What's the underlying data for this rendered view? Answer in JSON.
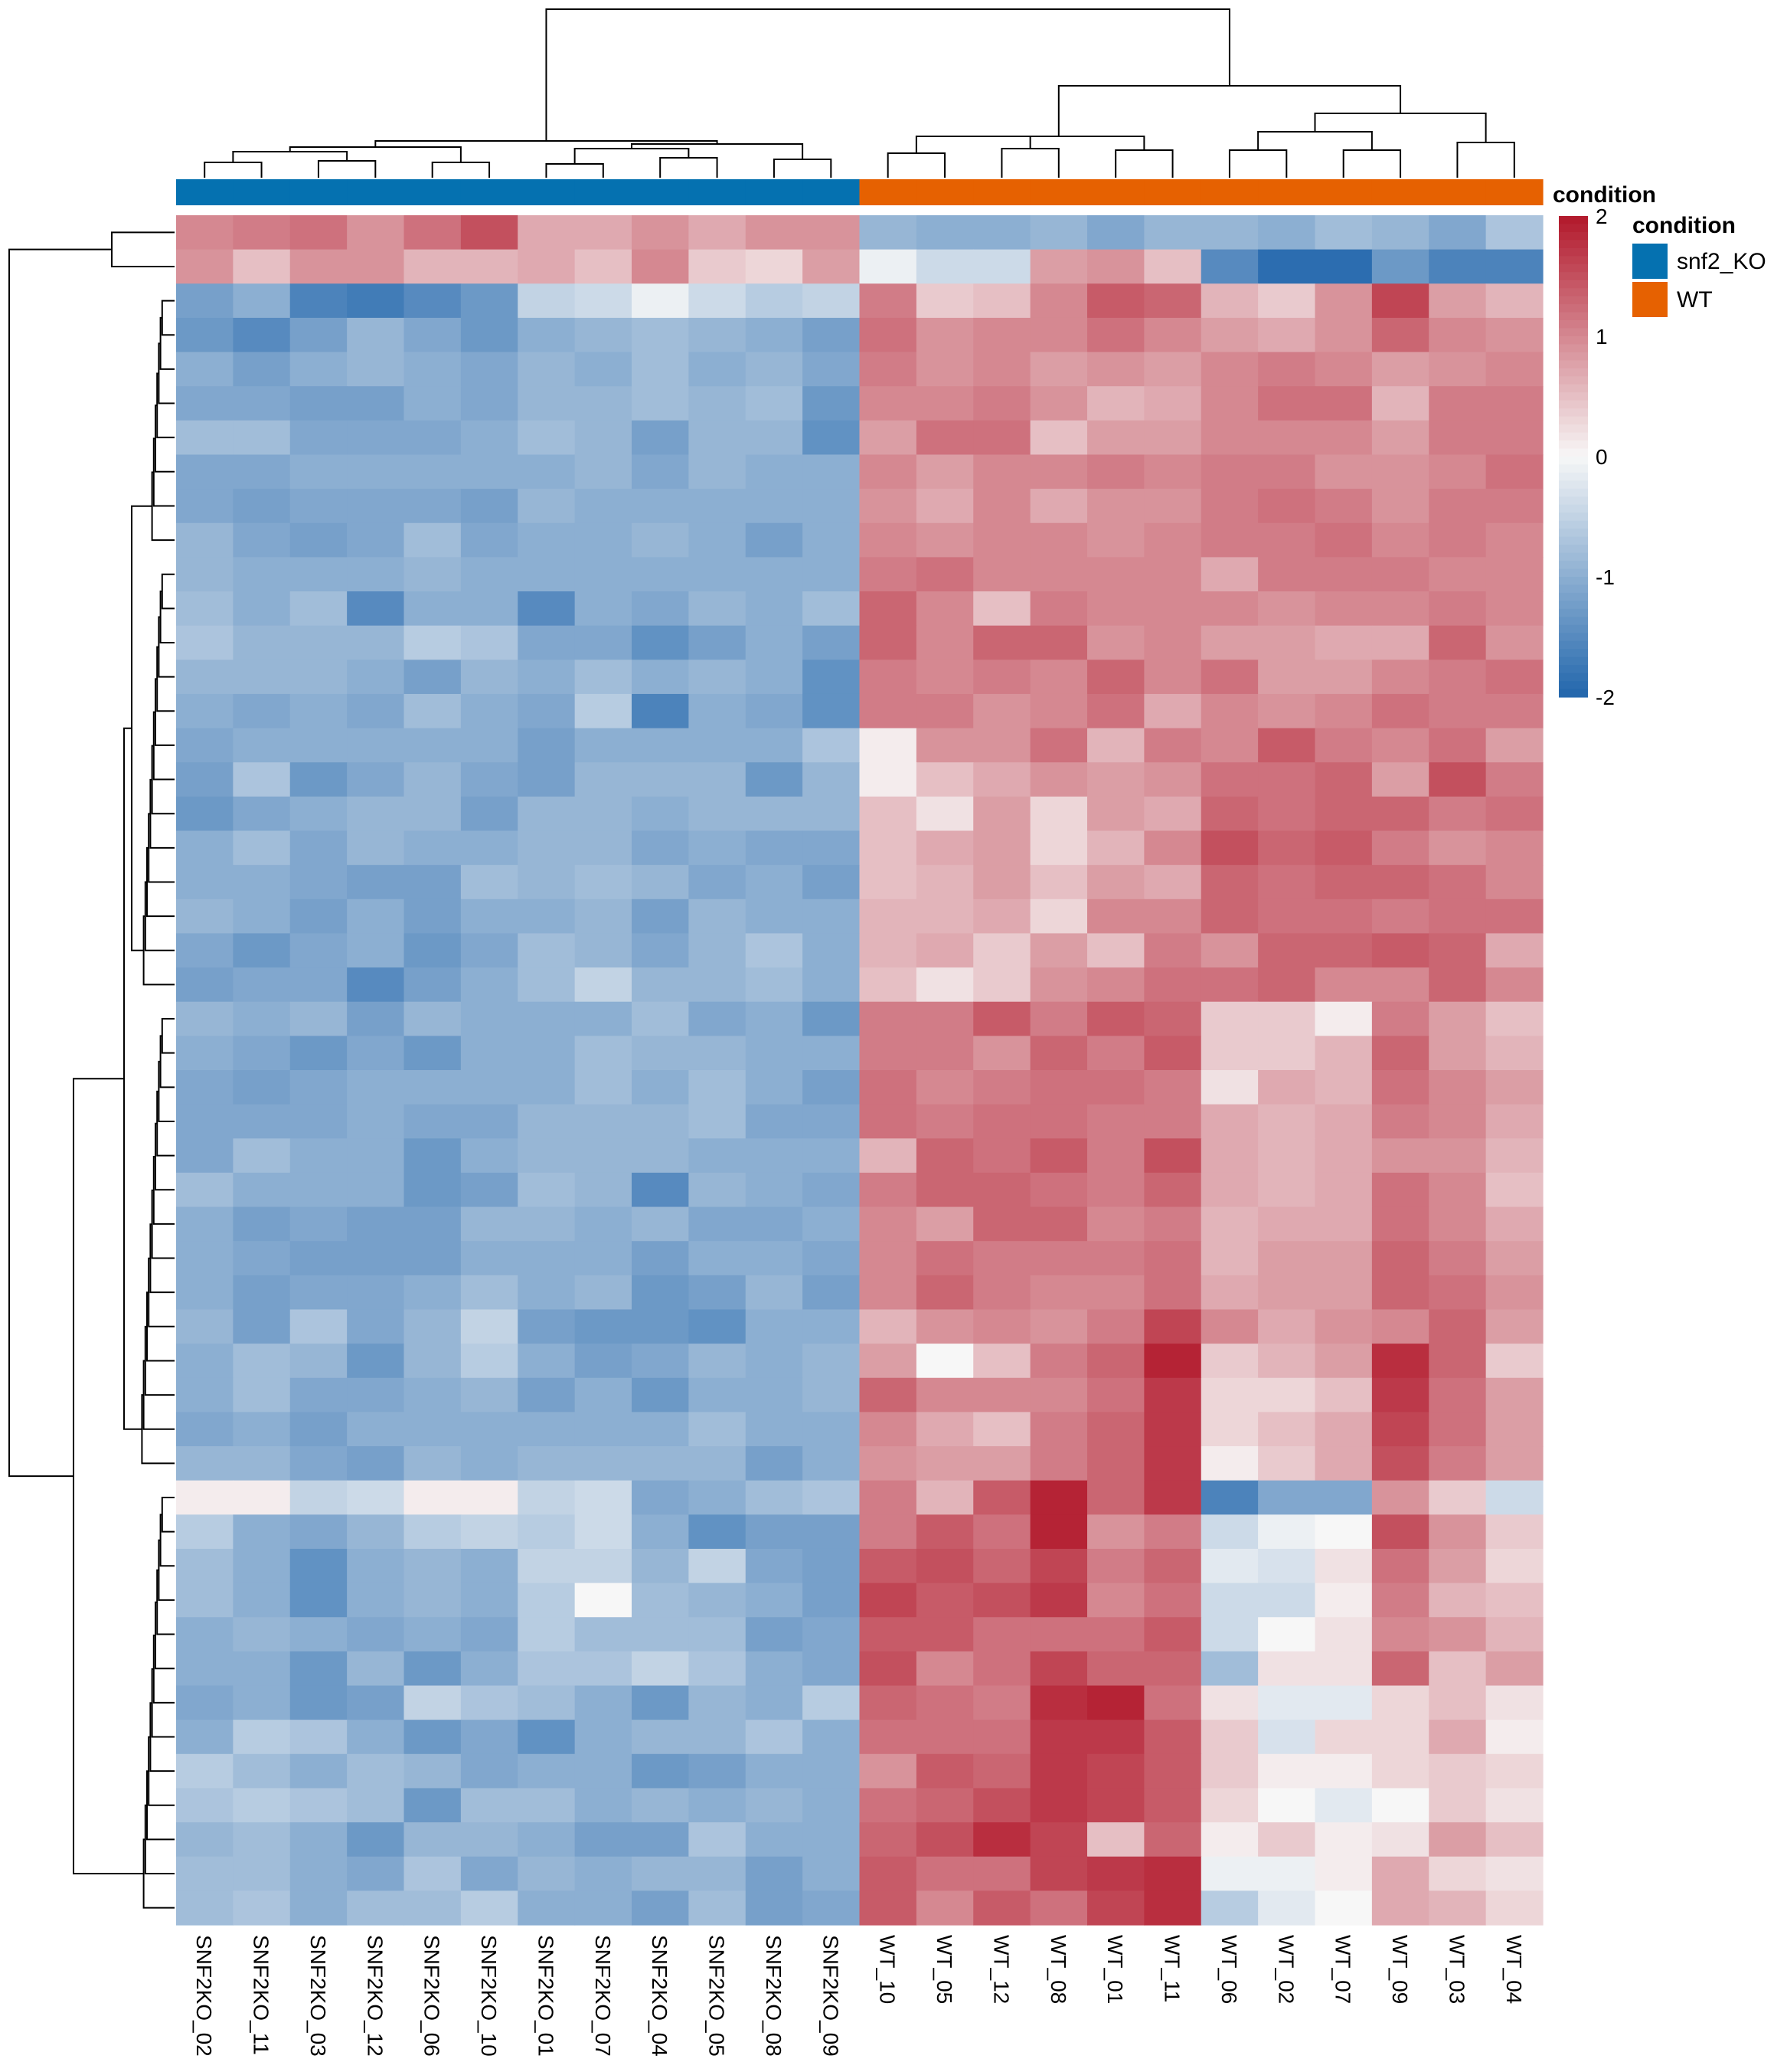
{
  "chart_data": {
    "type": "heatmap",
    "title": "",
    "columns": [
      "SNF2KO_02",
      "SNF2KO_11",
      "SNF2KO_03",
      "SNF2KO_12",
      "SNF2KO_06",
      "SNF2KO_10",
      "SNF2KO_01",
      "SNF2KO_07",
      "SNF2KO_04",
      "SNF2KO_05",
      "SNF2KO_08",
      "SNF2KO_09",
      "WT_10",
      "WT_05",
      "WT_12",
      "WT_08",
      "WT_01",
      "WT_11",
      "WT_06",
      "WT_02",
      "WT_07",
      "WT_09",
      "WT_03",
      "WT_04"
    ],
    "column_annotation": {
      "name": "condition",
      "values": [
        "snf2_KO",
        "snf2_KO",
        "snf2_KO",
        "snf2_KO",
        "snf2_KO",
        "snf2_KO",
        "snf2_KO",
        "snf2_KO",
        "snf2_KO",
        "snf2_KO",
        "snf2_KO",
        "snf2_KO",
        "WT",
        "WT",
        "WT",
        "WT",
        "WT",
        "WT",
        "WT",
        "WT",
        "WT",
        "WT",
        "WT",
        "WT"
      ]
    },
    "annotation_legend": {
      "title": "condition",
      "entries": [
        {
          "label": "snf2_KO",
          "color": "#0571b0"
        },
        {
          "label": "WT",
          "color": "#e66101"
        }
      ]
    },
    "color_scale": {
      "ticks": [
        "2",
        "1",
        "0",
        "-1",
        "-2"
      ],
      "min": -2,
      "max": 2,
      "low_color": "#2166ac",
      "mid_color": "#f7f7f7",
      "high_color": "#b2182b"
    },
    "row_dendrogram": true,
    "column_dendrogram": true,
    "values": [
      [
        1.0,
        1.1,
        1.2,
        0.9,
        1.2,
        1.5,
        0.7,
        0.7,
        0.9,
        0.7,
        0.9,
        0.9,
        -0.9,
        -1.0,
        -1.0,
        -0.9,
        -1.1,
        -0.9,
        -0.9,
        -1.0,
        -0.8,
        -0.9,
        -1.1,
        -0.7
      ],
      [
        0.9,
        0.5,
        0.9,
        0.9,
        0.6,
        0.6,
        0.7,
        0.5,
        1.0,
        0.4,
        0.3,
        0.8,
        -0.1,
        -0.4,
        -0.4,
        0.8,
        0.9,
        0.5,
        -1.5,
        -1.9,
        -1.9,
        -1.3,
        -1.6,
        -1.6
      ],
      [
        -1.2,
        -1.0,
        -1.6,
        -1.7,
        -1.5,
        -1.3,
        -0.5,
        -0.4,
        -0.1,
        -0.4,
        -0.6,
        -0.5,
        1.1,
        0.4,
        0.5,
        1.0,
        1.4,
        1.3,
        0.6,
        0.4,
        0.9,
        1.6,
        0.8,
        0.6
      ],
      [
        -1.3,
        -1.5,
        -1.2,
        -0.9,
        -1.1,
        -1.3,
        -1.0,
        -0.9,
        -0.8,
        -0.9,
        -1.0,
        -1.2,
        1.2,
        0.9,
        1.0,
        1.0,
        1.2,
        1.0,
        0.8,
        0.7,
        0.9,
        1.3,
        1.0,
        0.9
      ],
      [
        -1.0,
        -1.2,
        -1.0,
        -0.9,
        -1.0,
        -1.1,
        -0.9,
        -1.0,
        -0.8,
        -1.0,
        -0.9,
        -1.1,
        1.1,
        0.9,
        1.0,
        0.8,
        0.9,
        0.8,
        1.0,
        1.1,
        1.0,
        0.8,
        0.9,
        1.0
      ],
      [
        -1.1,
        -1.1,
        -1.2,
        -1.2,
        -1.0,
        -1.1,
        -0.9,
        -0.9,
        -0.8,
        -0.9,
        -0.8,
        -1.3,
        1.0,
        1.0,
        1.1,
        0.9,
        0.6,
        0.7,
        1.0,
        1.2,
        1.2,
        0.6,
        1.1,
        1.1
      ],
      [
        -0.8,
        -0.8,
        -1.1,
        -1.1,
        -1.1,
        -1.0,
        -0.8,
        -0.9,
        -1.2,
        -0.9,
        -0.9,
        -1.4,
        0.8,
        1.2,
        1.2,
        0.5,
        0.8,
        0.8,
        1.0,
        1.0,
        1.0,
        0.8,
        1.1,
        1.1
      ],
      [
        -1.1,
        -1.1,
        -1.0,
        -1.0,
        -1.0,
        -1.0,
        -1.0,
        -0.9,
        -1.1,
        -0.9,
        -1.0,
        -1.0,
        1.0,
        0.8,
        1.0,
        1.0,
        1.1,
        1.0,
        1.1,
        1.1,
        0.9,
        0.9,
        1.0,
        1.2
      ],
      [
        -1.1,
        -1.2,
        -1.1,
        -1.1,
        -1.1,
        -1.2,
        -0.9,
        -1.0,
        -1.0,
        -1.0,
        -1.0,
        -1.0,
        0.9,
        0.7,
        1.0,
        0.7,
        0.9,
        0.9,
        1.1,
        1.2,
        1.1,
        0.9,
        1.1,
        1.1
      ],
      [
        -0.9,
        -1.1,
        -1.2,
        -1.1,
        -0.8,
        -1.1,
        -1.0,
        -1.0,
        -0.9,
        -1.0,
        -1.2,
        -1.0,
        1.0,
        0.9,
        1.0,
        1.0,
        0.9,
        1.0,
        1.1,
        1.1,
        1.2,
        1.0,
        1.1,
        1.0
      ],
      [
        -0.9,
        -1.0,
        -1.0,
        -1.0,
        -0.9,
        -1.0,
        -1.0,
        -1.0,
        -1.0,
        -1.0,
        -1.0,
        -1.0,
        1.1,
        1.2,
        1.0,
        1.0,
        1.0,
        1.0,
        0.7,
        1.1,
        1.1,
        1.1,
        1.0,
        1.0
      ],
      [
        -0.8,
        -1.0,
        -0.8,
        -1.5,
        -1.0,
        -1.0,
        -1.5,
        -1.0,
        -1.1,
        -0.9,
        -1.0,
        -0.8,
        1.3,
        1.0,
        0.5,
        1.1,
        1.0,
        1.0,
        1.0,
        0.9,
        1.0,
        1.0,
        1.1,
        1.0
      ],
      [
        -0.7,
        -0.9,
        -0.9,
        -0.9,
        -0.6,
        -0.7,
        -1.1,
        -1.1,
        -1.4,
        -1.2,
        -1.0,
        -1.2,
        1.3,
        1.0,
        1.3,
        1.3,
        0.9,
        1.0,
        0.8,
        0.8,
        0.7,
        0.7,
        1.3,
        0.9
      ],
      [
        -0.9,
        -0.9,
        -0.9,
        -1.0,
        -1.2,
        -0.9,
        -1.0,
        -0.8,
        -1.0,
        -0.9,
        -1.0,
        -1.4,
        1.1,
        1.0,
        1.1,
        1.0,
        1.3,
        1.0,
        1.2,
        0.8,
        0.8,
        1.0,
        1.1,
        1.2
      ],
      [
        -1.0,
        -1.1,
        -1.0,
        -1.1,
        -0.8,
        -1.0,
        -1.1,
        -0.6,
        -1.6,
        -1.0,
        -1.1,
        -1.4,
        1.1,
        1.1,
        0.9,
        1.0,
        1.2,
        0.7,
        1.0,
        0.9,
        1.0,
        1.2,
        1.1,
        1.1
      ],
      [
        -1.1,
        -1.0,
        -1.0,
        -1.0,
        -1.0,
        -1.0,
        -1.2,
        -1.0,
        -1.0,
        -1.0,
        -1.0,
        -0.7,
        0.1,
        0.9,
        0.9,
        1.2,
        0.6,
        1.1,
        1.0,
        1.4,
        1.1,
        1.0,
        1.2,
        0.8
      ],
      [
        -1.2,
        -0.7,
        -1.3,
        -1.1,
        -0.9,
        -1.1,
        -1.2,
        -0.9,
        -0.9,
        -0.9,
        -1.3,
        -0.9,
        0.1,
        0.5,
        0.7,
        0.9,
        0.8,
        0.9,
        1.2,
        1.2,
        1.3,
        0.8,
        1.5,
        1.1
      ],
      [
        -1.3,
        -1.1,
        -1.0,
        -0.9,
        -0.9,
        -1.2,
        -0.9,
        -0.9,
        -1.0,
        -0.9,
        -0.9,
        -0.9,
        0.5,
        0.2,
        0.8,
        0.3,
        0.8,
        0.7,
        1.3,
        1.2,
        1.3,
        1.3,
        1.1,
        1.2
      ],
      [
        -1.0,
        -0.8,
        -1.1,
        -0.9,
        -1.0,
        -1.0,
        -0.9,
        -0.9,
        -1.1,
        -1.0,
        -1.1,
        -1.1,
        0.5,
        0.7,
        0.8,
        0.3,
        0.6,
        1.0,
        1.5,
        1.3,
        1.4,
        1.1,
        0.9,
        1.0
      ],
      [
        -1.0,
        -1.0,
        -1.1,
        -1.2,
        -1.2,
        -0.8,
        -0.9,
        -0.8,
        -0.9,
        -1.1,
        -1.0,
        -1.2,
        0.5,
        0.6,
        0.8,
        0.5,
        0.8,
        0.7,
        1.3,
        1.2,
        1.3,
        1.3,
        1.2,
        1.0
      ],
      [
        -0.9,
        -1.0,
        -1.2,
        -1.0,
        -1.2,
        -1.0,
        -1.0,
        -0.9,
        -1.2,
        -0.9,
        -1.0,
        -1.0,
        0.6,
        0.6,
        0.7,
        0.3,
        1.0,
        1.0,
        1.3,
        1.2,
        1.2,
        1.1,
        1.2,
        1.2
      ],
      [
        -1.1,
        -1.3,
        -1.1,
        -1.0,
        -1.3,
        -1.1,
        -0.8,
        -0.9,
        -1.1,
        -0.9,
        -0.7,
        -1.0,
        0.6,
        0.7,
        0.4,
        0.8,
        0.5,
        1.1,
        0.9,
        1.3,
        1.3,
        1.4,
        1.3,
        0.7
      ],
      [
        -1.2,
        -1.1,
        -1.1,
        -1.5,
        -1.2,
        -1.0,
        -0.8,
        -0.5,
        -0.9,
        -0.9,
        -0.8,
        -1.0,
        0.5,
        0.2,
        0.4,
        0.9,
        1.0,
        1.2,
        1.2,
        1.3,
        1.0,
        1.0,
        1.3,
        1.0
      ],
      [
        -0.9,
        -1.0,
        -0.9,
        -1.2,
        -0.9,
        -1.0,
        -1.0,
        -1.0,
        -0.8,
        -1.1,
        -1.0,
        -1.3,
        1.1,
        1.1,
        1.4,
        1.1,
        1.4,
        1.3,
        0.4,
        0.4,
        0.1,
        1.1,
        0.8,
        0.5
      ],
      [
        -1.0,
        -1.1,
        -1.3,
        -1.1,
        -1.3,
        -1.0,
        -1.0,
        -0.8,
        -0.9,
        -0.9,
        -1.0,
        -1.0,
        1.1,
        1.1,
        0.9,
        1.3,
        1.1,
        1.4,
        0.4,
        0.4,
        0.6,
        1.3,
        0.8,
        0.6
      ],
      [
        -1.1,
        -1.2,
        -1.1,
        -1.0,
        -1.0,
        -1.0,
        -1.0,
        -0.8,
        -1.0,
        -0.8,
        -1.0,
        -1.2,
        1.2,
        1.0,
        1.1,
        1.2,
        1.2,
        1.1,
        0.2,
        0.7,
        0.6,
        1.2,
        1.0,
        0.8
      ],
      [
        -1.1,
        -1.1,
        -1.1,
        -1.0,
        -1.1,
        -1.1,
        -0.9,
        -0.9,
        -0.9,
        -0.8,
        -1.1,
        -1.1,
        1.2,
        1.1,
        1.2,
        1.2,
        1.1,
        1.1,
        0.7,
        0.6,
        0.7,
        1.1,
        1.0,
        0.7
      ],
      [
        -1.1,
        -0.8,
        -1.0,
        -1.0,
        -1.3,
        -1.0,
        -0.9,
        -0.9,
        -0.9,
        -1.0,
        -1.0,
        -1.0,
        0.6,
        1.3,
        1.2,
        1.4,
        1.1,
        1.5,
        0.7,
        0.6,
        0.7,
        0.9,
        0.9,
        0.6
      ],
      [
        -0.8,
        -1.0,
        -1.0,
        -1.0,
        -1.3,
        -1.2,
        -0.8,
        -0.9,
        -1.5,
        -0.9,
        -1.0,
        -1.1,
        1.1,
        1.3,
        1.3,
        1.2,
        1.1,
        1.3,
        0.7,
        0.6,
        0.7,
        1.2,
        1.0,
        0.5
      ],
      [
        -1.0,
        -1.2,
        -1.1,
        -1.2,
        -1.2,
        -0.9,
        -0.9,
        -1.0,
        -0.9,
        -1.1,
        -1.1,
        -1.0,
        1.0,
        0.8,
        1.3,
        1.3,
        1.0,
        1.1,
        0.6,
        0.7,
        0.7,
        1.2,
        1.0,
        0.7
      ],
      [
        -1.0,
        -1.1,
        -1.2,
        -1.2,
        -1.2,
        -1.0,
        -1.0,
        -1.0,
        -1.2,
        -1.0,
        -1.0,
        -1.1,
        1.0,
        1.2,
        1.1,
        1.1,
        1.1,
        1.2,
        0.6,
        0.8,
        0.8,
        1.3,
        1.1,
        0.8
      ],
      [
        -1.0,
        -1.2,
        -1.1,
        -1.1,
        -1.0,
        -0.8,
        -1.0,
        -0.9,
        -1.3,
        -1.2,
        -0.9,
        -1.2,
        1.0,
        1.3,
        1.1,
        1.0,
        1.0,
        1.2,
        0.7,
        0.8,
        0.8,
        1.3,
        1.2,
        0.9
      ],
      [
        -0.9,
        -1.2,
        -0.7,
        -1.1,
        -0.9,
        -0.5,
        -1.2,
        -1.3,
        -1.3,
        -1.4,
        -1.0,
        -1.0,
        0.6,
        0.9,
        1.0,
        0.9,
        1.1,
        1.6,
        1.0,
        0.7,
        0.9,
        1.0,
        1.3,
        0.8
      ],
      [
        -1.0,
        -0.8,
        -0.9,
        -1.3,
        -0.9,
        -0.6,
        -1.0,
        -1.2,
        -1.1,
        -0.9,
        -1.0,
        -0.9,
        0.8,
        0.0,
        0.5,
        1.1,
        1.3,
        1.9,
        0.4,
        0.6,
        0.8,
        1.8,
        1.3,
        0.4
      ],
      [
        -1.0,
        -0.8,
        -1.1,
        -1.1,
        -1.0,
        -0.9,
        -1.2,
        -1.0,
        -1.3,
        -1.0,
        -1.0,
        -0.9,
        1.3,
        1.0,
        1.0,
        1.0,
        1.2,
        1.7,
        0.3,
        0.3,
        0.5,
        1.7,
        1.2,
        0.8
      ],
      [
        -1.1,
        -1.0,
        -1.2,
        -1.0,
        -1.0,
        -1.0,
        -1.0,
        -1.0,
        -1.0,
        -0.8,
        -1.0,
        -1.0,
        1.0,
        0.7,
        0.5,
        1.1,
        1.3,
        1.7,
        0.3,
        0.5,
        0.7,
        1.6,
        1.2,
        0.8
      ],
      [
        -0.9,
        -0.9,
        -1.1,
        -1.2,
        -0.9,
        -1.0,
        -0.9,
        -0.9,
        -0.9,
        -0.9,
        -1.2,
        -1.0,
        0.9,
        0.8,
        0.8,
        1.1,
        1.3,
        1.7,
        0.1,
        0.4,
        0.7,
        1.5,
        1.1,
        0.8
      ],
      [
        0.1,
        0.1,
        -0.5,
        -0.4,
        0.1,
        0.1,
        -0.5,
        -0.4,
        -1.1,
        -1.0,
        -0.8,
        -0.7,
        1.1,
        0.6,
        1.4,
        1.9,
        1.3,
        1.7,
        -1.6,
        -1.1,
        -1.1,
        0.9,
        0.4,
        -0.4
      ],
      [
        -0.6,
        -1.0,
        -1.1,
        -0.9,
        -0.6,
        -0.5,
        -0.6,
        -0.4,
        -1.0,
        -1.4,
        -1.2,
        -1.2,
        1.1,
        1.4,
        1.2,
        1.9,
        0.9,
        1.1,
        -0.4,
        -0.1,
        0.0,
        1.5,
        0.9,
        0.4
      ],
      [
        -0.8,
        -1.0,
        -1.4,
        -1.0,
        -0.9,
        -1.0,
        -0.5,
        -0.5,
        -0.9,
        -0.5,
        -1.1,
        -1.2,
        1.4,
        1.5,
        1.3,
        1.6,
        1.1,
        1.3,
        -0.2,
        -0.3,
        0.2,
        1.2,
        0.8,
        0.3
      ],
      [
        -0.8,
        -1.0,
        -1.4,
        -1.0,
        -0.9,
        -1.0,
        -0.6,
        0.0,
        -0.8,
        -0.9,
        -1.0,
        -1.2,
        1.6,
        1.4,
        1.5,
        1.7,
        1.0,
        1.2,
        -0.4,
        -0.4,
        0.1,
        1.1,
        0.6,
        0.5
      ],
      [
        -1.0,
        -0.9,
        -1.0,
        -1.1,
        -1.0,
        -1.1,
        -0.6,
        -0.8,
        -0.8,
        -0.8,
        -1.2,
        -1.1,
        1.4,
        1.4,
        1.2,
        1.2,
        1.2,
        1.4,
        -0.4,
        0.0,
        0.2,
        1.0,
        0.9,
        0.6
      ],
      [
        -1.0,
        -1.0,
        -1.3,
        -0.9,
        -1.3,
        -1.0,
        -0.7,
        -0.7,
        -0.5,
        -0.7,
        -1.0,
        -1.1,
        1.5,
        1.0,
        1.2,
        1.6,
        1.3,
        1.3,
        -0.8,
        0.2,
        0.2,
        1.3,
        0.5,
        0.8
      ],
      [
        -1.1,
        -1.0,
        -1.3,
        -1.2,
        -0.5,
        -0.7,
        -0.8,
        -1.0,
        -1.3,
        -0.9,
        -1.0,
        -0.6,
        1.3,
        1.2,
        1.1,
        1.8,
        1.9,
        1.2,
        0.2,
        -0.2,
        -0.2,
        0.3,
        0.5,
        0.2
      ],
      [
        -1.0,
        -0.6,
        -0.7,
        -1.0,
        -1.3,
        -1.1,
        -1.4,
        -1.0,
        -0.9,
        -0.9,
        -0.7,
        -1.0,
        1.2,
        1.2,
        1.2,
        1.7,
        1.7,
        1.4,
        0.4,
        -0.3,
        0.3,
        0.3,
        0.7,
        0.1
      ],
      [
        -0.6,
        -0.8,
        -1.0,
        -0.8,
        -0.9,
        -1.1,
        -1.0,
        -1.0,
        -1.3,
        -1.2,
        -1.0,
        -1.0,
        0.9,
        1.4,
        1.3,
        1.7,
        1.6,
        1.4,
        0.4,
        0.1,
        0.1,
        0.3,
        0.4,
        0.3
      ],
      [
        -0.7,
        -0.6,
        -0.7,
        -0.8,
        -1.3,
        -0.8,
        -0.8,
        -1.0,
        -0.9,
        -1.0,
        -0.9,
        -1.0,
        1.2,
        1.3,
        1.5,
        1.7,
        1.6,
        1.4,
        0.3,
        0.0,
        -0.2,
        0.0,
        0.4,
        0.2
      ],
      [
        -0.9,
        -0.8,
        -1.0,
        -1.3,
        -0.9,
        -0.9,
        -1.0,
        -1.2,
        -1.2,
        -0.7,
        -1.0,
        -1.0,
        1.3,
        1.5,
        1.8,
        1.6,
        0.5,
        1.3,
        0.1,
        0.4,
        0.1,
        0.2,
        0.8,
        0.5
      ],
      [
        -0.8,
        -0.8,
        -1.0,
        -1.1,
        -0.7,
        -1.1,
        -0.9,
        -1.0,
        -0.9,
        -0.9,
        -1.2,
        -1.0,
        1.4,
        1.2,
        1.2,
        1.6,
        1.7,
        1.8,
        -0.1,
        -0.1,
        0.1,
        0.7,
        0.3,
        0.2
      ],
      [
        -0.8,
        -0.7,
        -1.0,
        -0.8,
        -0.8,
        -0.6,
        -1.0,
        -1.0,
        -1.2,
        -0.8,
        -1.2,
        -1.1,
        1.4,
        1.0,
        1.4,
        1.2,
        1.6,
        1.8,
        -0.6,
        -0.2,
        0.0,
        0.7,
        0.6,
        0.3
      ]
    ]
  }
}
